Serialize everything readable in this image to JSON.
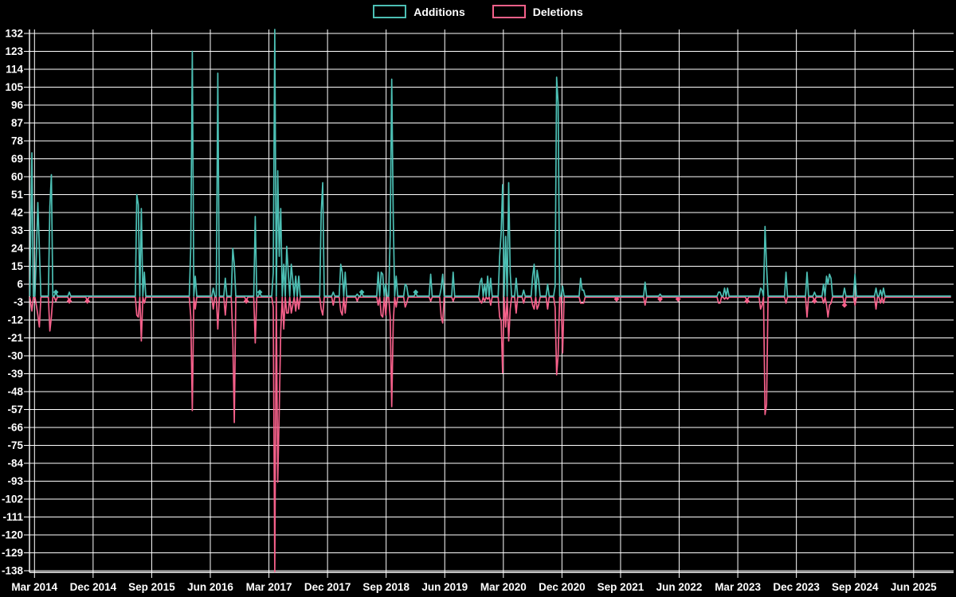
{
  "legend": {
    "additions_label": "Additions",
    "deletions_label": "Deletions"
  },
  "colors": {
    "background": "#000000",
    "grid": "#ffffff",
    "text": "#ffffff",
    "additions": "#4cbfb4",
    "deletions": "#f5608a"
  },
  "chart_data": {
    "type": "line",
    "title": "",
    "legend_position": "top-center",
    "grid": true,
    "x_unit": "week",
    "x_start": "Feb 2014",
    "x_end": "Nov 2025",
    "weeks_total": 614,
    "x_axis": {
      "months_per_tick": 9,
      "tick_labels": [
        "Mar 2014",
        "Dec 2014",
        "Sep 2015",
        "Jun 2016",
        "Mar 2017",
        "Dec 2017",
        "Sep 2018",
        "Jun 2019",
        "Mar 2020",
        "Dec 2020",
        "Sep 2021",
        "Jun 2022",
        "Mar 2023",
        "Dec 2023",
        "Sep 2024",
        "Jun 2025"
      ]
    },
    "y_axis": {
      "max": 132,
      "min": -138,
      "step": 9,
      "tick_labels": [
        "132",
        "123",
        "114",
        "105",
        "96",
        "87",
        "78",
        "69",
        "60",
        "51",
        "42",
        "33",
        "24",
        "15",
        "6",
        "-3",
        "-12",
        "-21",
        "-30",
        "-39",
        "-48",
        "-57",
        "-66",
        "-75",
        "-84",
        "-93",
        "-102",
        "-111",
        "-120",
        "-129",
        "-138"
      ]
    },
    "series": [
      {
        "name": "Additions",
        "color": "#4cbfb4",
        "baseline": 0
      },
      {
        "name": "Deletions",
        "color": "#f5608a",
        "baseline": 0
      }
    ],
    "sparse_points_format": [
      "week_index",
      "additions",
      "deletions"
    ],
    "sparse_points": [
      [
        0,
        72,
        -7
      ],
      [
        3,
        21,
        -4
      ],
      [
        4,
        47,
        -9
      ],
      [
        5,
        24,
        -15
      ],
      [
        12,
        45,
        -17
      ],
      [
        13,
        61,
        -10
      ],
      [
        16,
        2,
        -2
      ],
      [
        25,
        2,
        -2
      ],
      [
        37,
        0,
        -2
      ],
      [
        70,
        51,
        -9
      ],
      [
        71,
        46,
        -10
      ],
      [
        73,
        44,
        -22
      ],
      [
        75,
        12,
        -3
      ],
      [
        106,
        25,
        -10
      ],
      [
        107,
        123,
        -57
      ],
      [
        109,
        10,
        -6
      ],
      [
        121,
        4,
        -6
      ],
      [
        124,
        112,
        -16
      ],
      [
        129,
        9,
        -9
      ],
      [
        134,
        24,
        -20
      ],
      [
        135,
        16,
        -63
      ],
      [
        143,
        0,
        -2
      ],
      [
        149,
        40,
        -23
      ],
      [
        152,
        2,
        0
      ],
      [
        161,
        12,
        -5
      ],
      [
        162,
        134,
        -138
      ],
      [
        164,
        63,
        -93
      ],
      [
        165,
        20,
        -57
      ],
      [
        166,
        44,
        -17
      ],
      [
        168,
        16,
        -16
      ],
      [
        170,
        25,
        -8
      ],
      [
        171,
        12,
        -8
      ],
      [
        173,
        16,
        -8
      ],
      [
        174,
        8,
        -4
      ],
      [
        176,
        10,
        -7
      ],
      [
        178,
        10,
        -6
      ],
      [
        193,
        42,
        -6
      ],
      [
        194,
        57,
        -9
      ],
      [
        201,
        2,
        -4
      ],
      [
        206,
        16,
        -7
      ],
      [
        207,
        12,
        -9
      ],
      [
        209,
        12,
        -8
      ],
      [
        217,
        1,
        -2
      ],
      [
        220,
        2,
        0
      ],
      [
        231,
        12,
        -4
      ],
      [
        233,
        12,
        -9
      ],
      [
        234,
        11,
        -10
      ],
      [
        236,
        6,
        -9
      ],
      [
        239,
        30,
        -10
      ],
      [
        240,
        109,
        -55
      ],
      [
        241,
        40,
        -13
      ],
      [
        243,
        10,
        -5
      ],
      [
        249,
        6,
        -5
      ],
      [
        250,
        5,
        -3
      ],
      [
        256,
        2,
        0
      ],
      [
        266,
        11,
        -2
      ],
      [
        273,
        4,
        -10
      ],
      [
        274,
        11,
        -13
      ],
      [
        281,
        12,
        -2
      ],
      [
        299,
        7,
        -2
      ],
      [
        300,
        9,
        -3
      ],
      [
        302,
        6,
        -2
      ],
      [
        304,
        10,
        -1
      ],
      [
        306,
        9,
        -4
      ],
      [
        312,
        20,
        -10
      ],
      [
        313,
        32,
        -12
      ],
      [
        314,
        56,
        -38
      ],
      [
        316,
        30,
        -15
      ],
      [
        318,
        57,
        -22
      ],
      [
        319,
        12,
        -6
      ],
      [
        323,
        9,
        -8
      ],
      [
        328,
        3,
        -3
      ],
      [
        334,
        10,
        -4
      ],
      [
        335,
        16,
        -6
      ],
      [
        337,
        13,
        -6
      ],
      [
        338,
        8,
        -4
      ],
      [
        344,
        6,
        -6
      ],
      [
        349,
        5,
        -5
      ],
      [
        350,
        110,
        -39
      ],
      [
        351,
        97,
        -29
      ],
      [
        354,
        5,
        -28
      ],
      [
        366,
        9,
        -3
      ],
      [
        367,
        3,
        -3
      ],
      [
        368,
        3,
        -3
      ],
      [
        390,
        0,
        -1
      ],
      [
        409,
        7,
        -4
      ],
      [
        419,
        1,
        -1
      ],
      [
        431,
        0,
        -1
      ],
      [
        458,
        2,
        -3
      ],
      [
        459,
        2,
        -3
      ],
      [
        462,
        4,
        -1
      ],
      [
        464,
        4,
        -1
      ],
      [
        477,
        0,
        -2
      ],
      [
        486,
        4,
        -6
      ],
      [
        487,
        3,
        -4
      ],
      [
        489,
        35,
        -59
      ],
      [
        490,
        15,
        -54
      ],
      [
        503,
        12,
        -3
      ],
      [
        517,
        12,
        -10
      ],
      [
        522,
        2,
        -2
      ],
      [
        528,
        6,
        -3
      ],
      [
        530,
        10,
        -4
      ],
      [
        531,
        6,
        -10
      ],
      [
        532,
        11,
        -4
      ],
      [
        533,
        9,
        -3
      ],
      [
        542,
        4,
        -4
      ],
      [
        549,
        11,
        -4
      ],
      [
        563,
        4,
        -6
      ],
      [
        566,
        3,
        -3
      ],
      [
        568,
        4,
        -3
      ]
    ],
    "zero_markers": {
      "additions_weeks": [
        16,
        152,
        220,
        256
      ],
      "deletions_weeks": [
        25,
        37,
        143,
        390,
        419,
        431,
        477,
        522,
        542
      ]
    }
  }
}
